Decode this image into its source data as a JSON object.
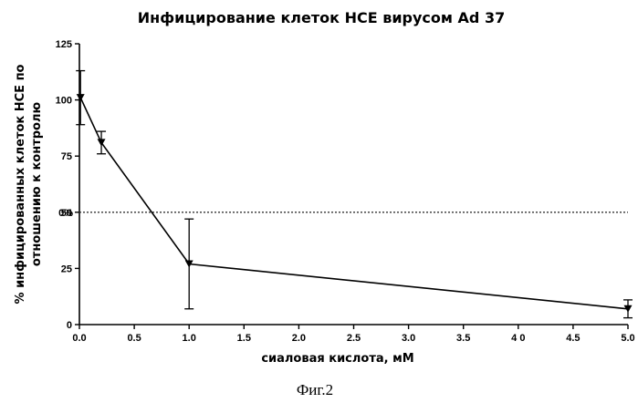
{
  "chart_data": {
    "type": "line",
    "title": "Инфицирование клеток HCE вирусом Ad 37",
    "xlabel": "сиаловая кислота, мМ",
    "ylabel_lines": [
      "% инфицированных клеток  HCE по",
      "отношению  к контролю"
    ],
    "xlim": [
      0,
      5
    ],
    "ylim": [
      0,
      125
    ],
    "x_ticks": [
      0.0,
      0.5,
      1.0,
      1.5,
      2.0,
      2.5,
      3.0,
      3.5,
      4.0,
      4.5,
      5.0
    ],
    "x_tick_labels": [
      "0.0",
      "0.5",
      "1.0",
      "1.5",
      "2.0",
      "2.5",
      "3.0",
      "3.5",
      "4 0",
      "4.5",
      "5.0"
    ],
    "y_ticks": [
      0,
      25,
      50,
      75,
      100,
      125
    ],
    "y_tick_labels": [
      "0",
      "25",
      "50",
      "75",
      "100",
      "125"
    ],
    "series": [
      {
        "x": [
          0.01,
          0.2,
          1.0,
          5.0
        ],
        "y": [
          101,
          81,
          27,
          7
        ],
        "error": [
          12,
          5,
          20,
          4
        ],
        "marker": "triangle-down"
      }
    ],
    "reference_line": {
      "y": 50,
      "label": "0%",
      "style": "dotted"
    },
    "grid": false,
    "legend": "none"
  },
  "caption": "Фиг.2"
}
